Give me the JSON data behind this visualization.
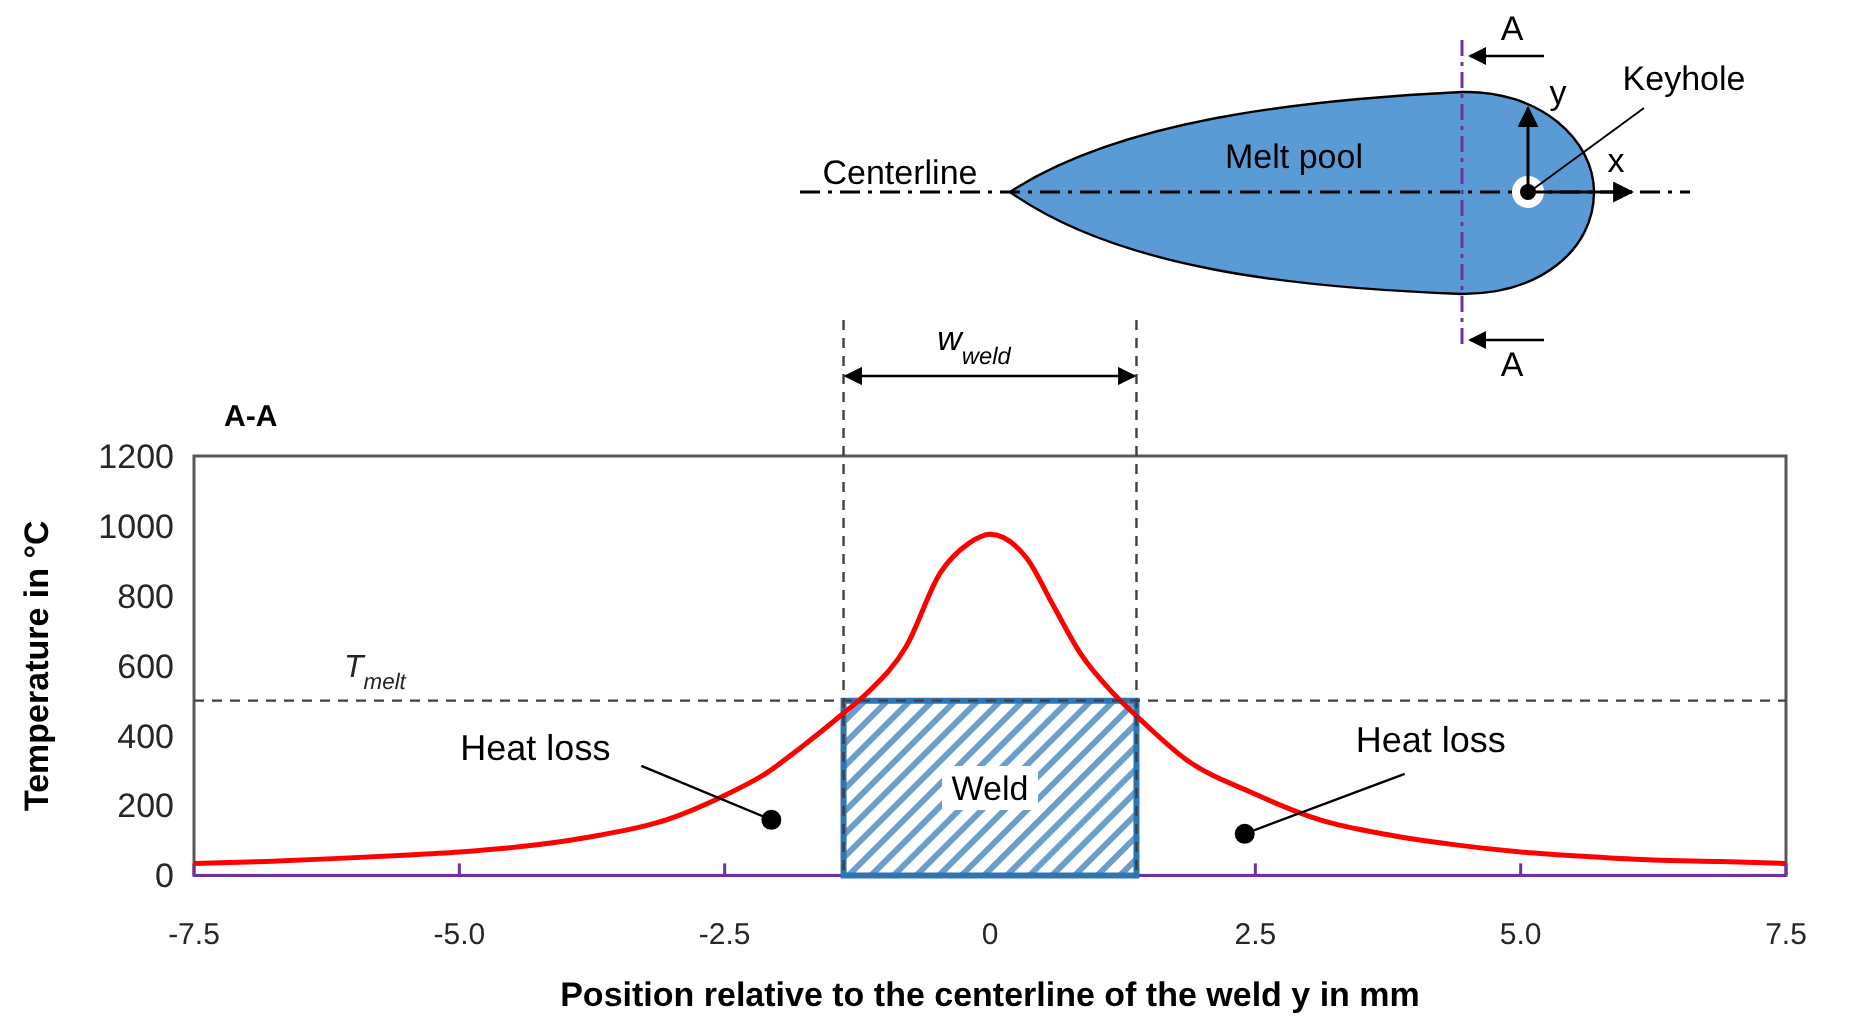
{
  "chart_data": {
    "type": "line",
    "title": "A-A",
    "xlabel": "Position relative to the centerline of the weld y in mm",
    "ylabel": "Temperature in °C",
    "xlim": [
      -7.5,
      7.5
    ],
    "xticks": [
      {
        "value": -7.5,
        "label": "-7.5"
      },
      {
        "value": -5,
        "label": "-5.0"
      },
      {
        "value": -2.5,
        "label": "-2.5"
      },
      0,
      2.5,
      {
        "value": 5,
        "label": "5.0"
      },
      7.5
    ],
    "ylim": [
      0,
      1200
    ],
    "yticks": [
      0,
      200,
      400,
      600,
      800,
      1000,
      1200
    ],
    "grid": false,
    "series": [
      {
        "type": "area",
        "name": "Weld",
        "color": "#2e75b6",
        "x": [
          -1.38,
          1.38
        ],
        "values": [
          500,
          500
        ]
      },
      {
        "color": "#ff0000",
        "x": [
          -7.5,
          -6.82,
          -6.19,
          -5.57,
          -5.0,
          -4.31,
          -3.68,
          -3.05,
          -2.52,
          -2.11,
          -1.79,
          -1.38,
          -1.16,
          -0.79,
          -0.47,
          -0.2,
          0,
          0.35,
          0.6,
          0.85,
          1.16,
          1.42,
          1.85,
          2.48,
          3.11,
          3.74,
          4.37,
          5.0,
          5.63,
          6.25,
          6.89,
          7.5
        ],
        "values": [
          34,
          40,
          48,
          57,
          67,
          86,
          115,
          159,
          226,
          292,
          364,
          464,
          521,
          655,
          865,
          950,
          976,
          906,
          770,
          636,
          521,
          445,
          331,
          235,
          159,
          117,
          88,
          67,
          54,
          44,
          40,
          34
        ]
      }
    ],
    "ref_lines": [
      {
        "axis": "y",
        "value": 500,
        "label": "T$_{melt}$",
        "line_style": "dashed",
        "color": "#404040"
      },
      {
        "axis": "x",
        "value": -1.38,
        "line_style": "dashed",
        "color": "#404040"
      },
      {
        "axis": "x",
        "value": 1.38,
        "line_style": "dashed",
        "color": "#404040"
      }
    ],
    "annotations": [
      {
        "text": "Heat loss",
        "x": -2.06,
        "y": 159
      },
      {
        "text": "Heat loss",
        "x": 2.4,
        "y": 119
      },
      "w$_{weld}$",
      "Centerline",
      "Melt pool",
      "Keyhole",
      "y",
      "x",
      "A",
      "A"
    ]
  }
}
